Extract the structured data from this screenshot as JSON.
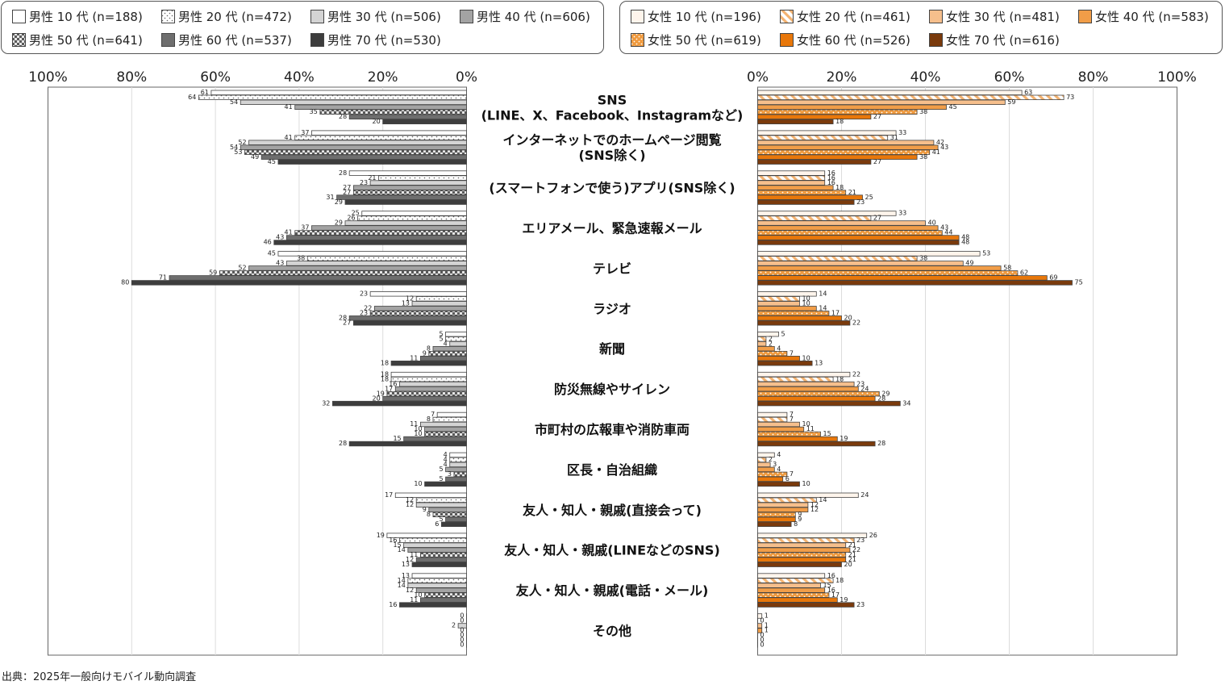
{
  "source": "出典：2025年一般向けモバイル動向調査",
  "legends": {
    "male": [
      [
        "男性 10 代 (n=188)",
        "男性 20 代 (n=472)",
        "男性 30 代 (n=506)",
        "男性 40 代 (n=606)"
      ],
      [
        "男性 50 代 (n=641)",
        "男性 60 代 (n=537)",
        "男性 70 代 (n=530)"
      ]
    ],
    "female": [
      [
        "女性 10 代 (n=196)",
        "女性 20 代 (n=461)",
        "女性 30 代 (n=481)",
        "女性 40 代 (n=583)"
      ],
      [
        "女性 50 代 (n=619)",
        "女性 60 代 (n=526)",
        "女性 70 代 (n=616)"
      ]
    ]
  },
  "chart_data": {
    "type": "bar",
    "orientation": "horizontal",
    "grid": true,
    "xlim": [
      0,
      100
    ],
    "male_axis_ticks": [
      "100%",
      "80%",
      "60%",
      "40%",
      "20%",
      "0%"
    ],
    "female_axis_ticks": [
      "0%",
      "20%",
      "40%",
      "60%",
      "80%",
      "100%"
    ],
    "categories": [
      [
        "SNS",
        "(LINE、X、Facebook、Instagramなど)"
      ],
      [
        "インターネットでのホームページ閲覧",
        "(SNS除く)"
      ],
      [
        "(スマートフォンで使う)アプリ(SNS除く)"
      ],
      [
        "エリアメール、緊急速報メール"
      ],
      [
        "テレビ"
      ],
      [
        "ラジオ"
      ],
      [
        "新聞"
      ],
      [
        "防災無線やサイレン"
      ],
      [
        "市町村の広報車や消防車両"
      ],
      [
        "区長・自治組織"
      ],
      [
        "友人・知人・親戚(直接会って)"
      ],
      [
        "友人・知人・親戚(LINEなどのSNS)"
      ],
      [
        "友人・知人・親戚(電話・メール)"
      ],
      [
        "その他"
      ]
    ],
    "male_series": [
      {
        "name": "男性 10 代 (n=188)",
        "values": [
          61,
          37,
          28,
          25,
          45,
          23,
          5,
          18,
          7,
          4,
          17,
          19,
          13,
          0
        ]
      },
      {
        "name": "男性 20 代 (n=472)",
        "values": [
          64,
          41,
          21,
          26,
          38,
          12,
          5,
          18,
          8,
          4,
          12,
          16,
          14,
          0
        ]
      },
      {
        "name": "男性 30 代 (n=506)",
        "values": [
          54,
          52,
          23,
          29,
          43,
          13,
          4,
          16,
          11,
          4,
          12,
          15,
          14,
          2
        ]
      },
      {
        "name": "男性 40 代 (n=606)",
        "values": [
          41,
          54,
          27,
          37,
          52,
          22,
          8,
          17,
          10,
          5,
          9,
          14,
          12,
          0
        ]
      },
      {
        "name": "男性 50 代 (n=641)",
        "values": [
          35,
          53,
          27,
          41,
          59,
          23,
          9,
          19,
          10,
          3,
          8,
          11,
          10,
          0
        ]
      },
      {
        "name": "男性 60 代 (n=537)",
        "values": [
          28,
          49,
          31,
          43,
          71,
          28,
          11,
          20,
          15,
          5,
          5,
          12,
          11,
          0
        ]
      },
      {
        "name": "男性 70 代 (n=530)",
        "values": [
          20,
          45,
          29,
          46,
          80,
          27,
          18,
          32,
          28,
          10,
          6,
          13,
          16,
          0
        ]
      }
    ],
    "female_series": [
      {
        "name": "女性 10 代 (n=196)",
        "values": [
          63,
          33,
          16,
          33,
          53,
          14,
          5,
          22,
          7,
          4,
          24,
          26,
          16,
          1
        ]
      },
      {
        "name": "女性 20 代 (n=461)",
        "values": [
          73,
          31,
          16,
          27,
          38,
          10,
          2,
          18,
          7,
          2,
          14,
          23,
          18,
          0
        ]
      },
      {
        "name": "女性 30 代 (n=481)",
        "values": [
          59,
          42,
          16,
          40,
          49,
          10,
          2,
          23,
          10,
          3,
          12,
          21,
          15,
          1
        ]
      },
      {
        "name": "女性 40 代 (n=583)",
        "values": [
          45,
          43,
          18,
          43,
          58,
          14,
          4,
          24,
          11,
          4,
          12,
          22,
          16,
          1
        ]
      },
      {
        "name": "女性 50 代 (n=619)",
        "values": [
          38,
          41,
          21,
          44,
          62,
          17,
          7,
          29,
          15,
          7,
          9,
          21,
          17,
          0
        ]
      },
      {
        "name": "女性 60 代 (n=526)",
        "values": [
          27,
          38,
          25,
          48,
          69,
          20,
          10,
          28,
          19,
          6,
          9,
          21,
          19,
          0
        ]
      },
      {
        "name": "女性 70 代 (n=616)",
        "values": [
          18,
          27,
          23,
          48,
          75,
          22,
          13,
          34,
          28,
          10,
          8,
          20,
          23,
          0
        ]
      }
    ]
  },
  "styles": {
    "male": [
      {
        "pattern": "plain",
        "fill": "#ffffff"
      },
      {
        "pattern": "dots",
        "fill": "#ffffff"
      },
      {
        "pattern": "plain",
        "fill": "#d4d4d4"
      },
      {
        "pattern": "plain",
        "fill": "#a3a3a3"
      },
      {
        "pattern": "checker",
        "fill": "#9a9a9a"
      },
      {
        "pattern": "plain",
        "fill": "#6e6e6e"
      },
      {
        "pattern": "plain",
        "fill": "#3d3d3d"
      }
    ],
    "female": [
      {
        "pattern": "plain",
        "fill": "#fff5ec"
      },
      {
        "pattern": "stripes",
        "fill": "#f6c48c"
      },
      {
        "pattern": "plain",
        "fill": "#f6bf8c"
      },
      {
        "pattern": "plain",
        "fill": "#f19d48"
      },
      {
        "pattern": "dots-orange",
        "fill": "#ef9a3e"
      },
      {
        "pattern": "plain",
        "fill": "#e8770a"
      },
      {
        "pattern": "plain",
        "fill": "#7a3a0c"
      }
    ]
  }
}
